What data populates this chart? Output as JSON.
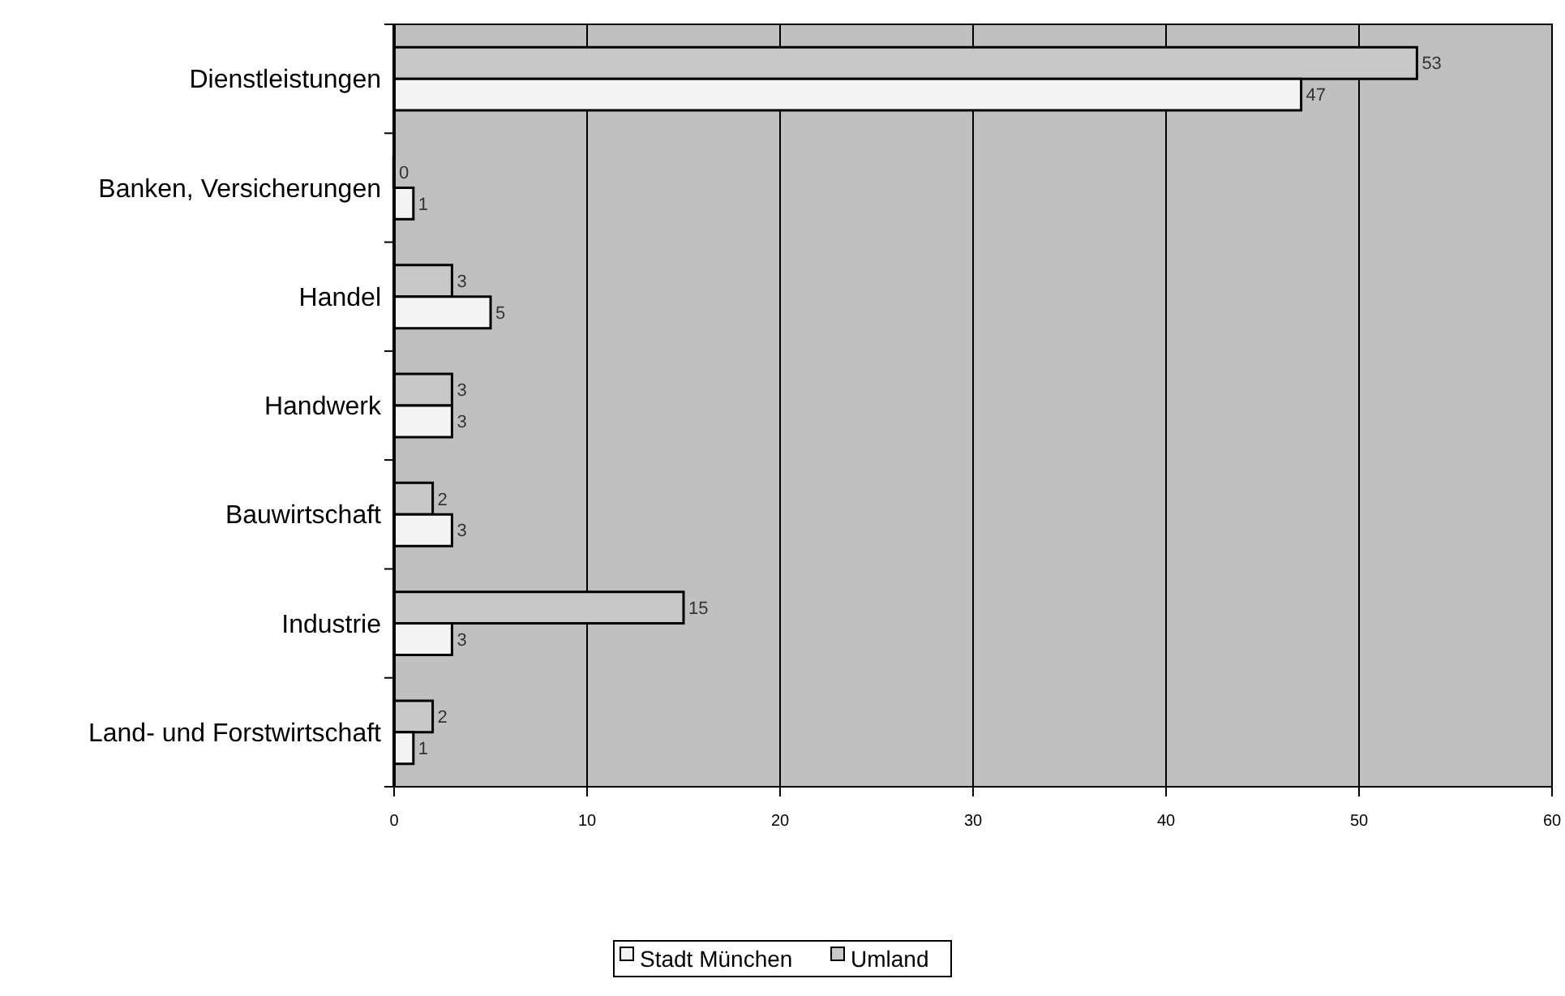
{
  "chart_data": {
    "type": "bar",
    "orientation": "horizontal",
    "categories": [
      "Dienstleistungen",
      "Banken, Versicherungen",
      "Handel",
      "Handwerk",
      "Bauwirtschaft",
      "Industrie",
      "Land- und Forstwirtschaft"
    ],
    "series": [
      {
        "name": "Umland",
        "color": "#c8c8c8",
        "values": [
          53,
          0,
          3,
          3,
          2,
          15,
          2
        ]
      },
      {
        "name": "Stadt München",
        "color": "#f4f4f4",
        "values": [
          47,
          1,
          5,
          3,
          3,
          3,
          1
        ]
      }
    ],
    "xlim": [
      0,
      60
    ],
    "xticks": [
      0,
      10,
      20,
      30,
      40,
      50,
      60
    ],
    "grid": "x",
    "legend": "bottom",
    "data_labels": true
  }
}
